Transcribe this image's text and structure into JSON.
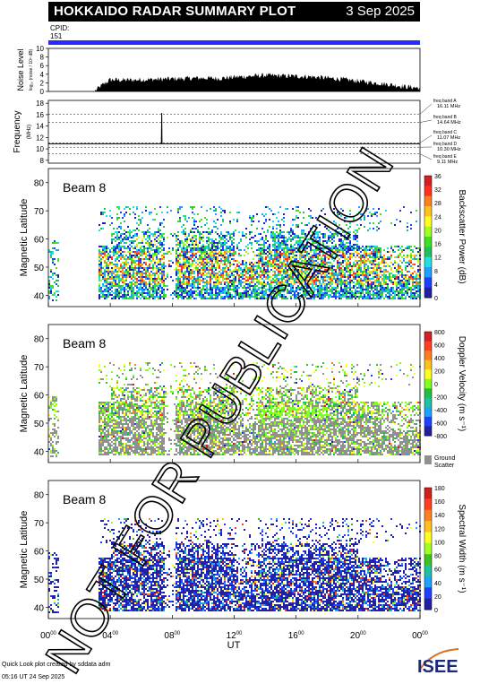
{
  "header": {
    "title": "HOKKAIDO RADAR SUMMARY PLOT",
    "date": "3 Sep 2025",
    "cpid_label": "CPID:",
    "cpid_value": "151"
  },
  "footer": {
    "credit_line1": "Quick Look plot created by sddata adm",
    "credit_line2": "05:16 UT 24 Sep 2025",
    "logo_text": "ISEE"
  },
  "watermark": "NOT FOR PUBLICATION",
  "colors": {
    "cpid_bar": "#2a2aff",
    "ground_scatter": "#909090",
    "power_scale": [
      "#2020a0",
      "#2040ff",
      "#20a0ff",
      "#20e0e0",
      "#20c060",
      "#40e020",
      "#a0ff20",
      "#ffff20",
      "#ffc020",
      "#ff8020",
      "#ff3020",
      "#d02020"
    ],
    "velocity_scale": [
      "#2020a0",
      "#2040ff",
      "#20a0ff",
      "#20c0a0",
      "#20c040",
      "#80ff20",
      "#ffff20",
      "#ffc020",
      "#ff8020",
      "#ff4020",
      "#d02020"
    ],
    "width_scale": [
      "#2020a0",
      "#2040ff",
      "#20a0ff",
      "#20c0a0",
      "#40c020",
      "#a0ff20",
      "#ffff20",
      "#ffc020",
      "#ff8020",
      "#ff4020",
      "#d02020"
    ]
  },
  "chart_data": [
    {
      "type": "area",
      "ylabel": "Noise Level",
      "ylabel_unit": "log₁₀ (noise / 10⁶ dB)",
      "y_ticks": [
        "10",
        "8",
        "6",
        "4",
        "2",
        "0"
      ],
      "ylim": [
        0,
        10
      ],
      "x": [
        0,
        1,
        2,
        3,
        3.5,
        4,
        5,
        6,
        7,
        8,
        9,
        10,
        11,
        12,
        13,
        14,
        15,
        16,
        17,
        18,
        19,
        20,
        21,
        22,
        23,
        24
      ],
      "values": [
        0,
        0,
        0,
        0,
        1.4,
        2.6,
        2.5,
        2.6,
        2.7,
        2.8,
        2.9,
        3.0,
        2.9,
        3.2,
        3.4,
        3.6,
        3.5,
        3.4,
        3.3,
        3.0,
        2.7,
        2.3,
        1.9,
        1.5,
        1.0,
        0.7
      ]
    },
    {
      "type": "line",
      "ylabel": "Frequency",
      "ylabel_unit": "(MHz)",
      "y_ticks": [
        "18",
        "16",
        "14",
        "12",
        "10",
        "8"
      ],
      "ylim": [
        7.5,
        18.5
      ],
      "reference_lines": [
        16.11,
        14.64,
        11.07,
        10.3,
        9.11
      ],
      "band_labels": [
        {
          "label": "freq band A",
          "value": "16.11 MHz"
        },
        {
          "label": "freq band B",
          "value": "14.64 MHz"
        },
        {
          "label": "freq band C",
          "value": "11.07 MHz"
        },
        {
          "label": "freq band D",
          "value": "10.30 MHz"
        },
        {
          "label": "freq band E",
          "value": "9.11 MHz"
        }
      ],
      "x": [
        0,
        7.3,
        7.32,
        7.34,
        24
      ],
      "values": [
        10.9,
        10.9,
        16.3,
        10.9,
        10.9
      ]
    },
    {
      "type": "heatmap",
      "beam_label": "Beam  8",
      "ylabel": "Magnetic Latitude",
      "y_ticks": [
        "80",
        "70",
        "60",
        "50",
        "40"
      ],
      "ylim": [
        36,
        85
      ],
      "colorbar_label": "Backscatter Power (dB)",
      "colorbar_ticks": [
        "36",
        "32",
        "28",
        "24",
        "20",
        "16",
        "12",
        "8",
        "4",
        "0"
      ],
      "scale": "power_scale"
    },
    {
      "type": "heatmap",
      "beam_label": "Beam  8",
      "ylabel": "Magnetic Latitude",
      "y_ticks": [
        "80",
        "70",
        "60",
        "50",
        "40"
      ],
      "ylim": [
        36,
        85
      ],
      "colorbar_label": "Doppler Velocity (m s⁻¹)",
      "colorbar_ticks": [
        "800",
        "600",
        "400",
        "200",
        "0",
        "-200",
        "-400",
        "-600",
        "-800"
      ],
      "ground_scatter_label": "Ground",
      "ground_scatter_label2": "Scatter",
      "scale": "velocity_scale"
    },
    {
      "type": "heatmap",
      "beam_label": "Beam  8",
      "ylabel": "Magnetic Latitude",
      "y_ticks": [
        "80",
        "70",
        "60",
        "50",
        "40"
      ],
      "ylim": [
        36,
        85
      ],
      "colorbar_label": "Spectral Width (m s⁻¹)",
      "colorbar_ticks": [
        "180",
        "160",
        "140",
        "120",
        "100",
        "80",
        "60",
        "40",
        "20",
        "0"
      ],
      "scale": "width_scale"
    }
  ],
  "x_axis": {
    "label": "UT",
    "ticks": [
      {
        "h": "00",
        "m": "00"
      },
      {
        "h": "04",
        "m": "00"
      },
      {
        "h": "08",
        "m": "00"
      },
      {
        "h": "12",
        "m": "00"
      },
      {
        "h": "16",
        "m": "00"
      },
      {
        "h": "20",
        "m": "00"
      },
      {
        "h": "00",
        "m": "00"
      }
    ]
  }
}
